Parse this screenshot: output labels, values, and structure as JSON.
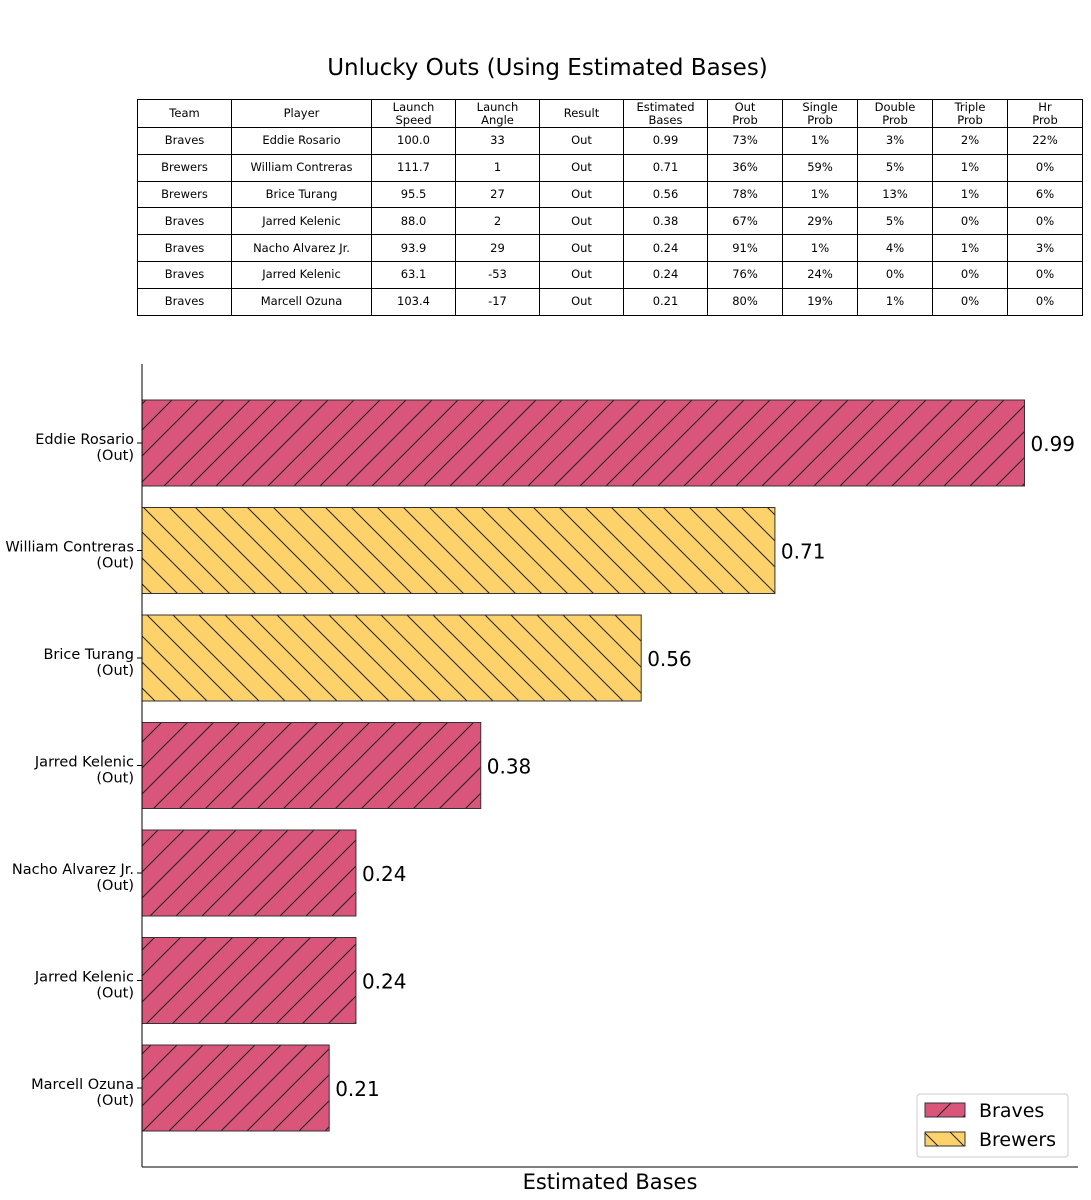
{
  "title": "Unlucky Outs (Using Estimated Bases)",
  "table": {
    "columns": [
      [
        "Team"
      ],
      [
        "Player"
      ],
      [
        "Launch",
        "Speed"
      ],
      [
        "Launch",
        "Angle"
      ],
      [
        "Result"
      ],
      [
        "Estimated",
        "Bases"
      ],
      [
        "Out",
        "Prob"
      ],
      [
        "Single",
        "Prob"
      ],
      [
        "Double",
        "Prob"
      ],
      [
        "Triple",
        "Prob"
      ],
      [
        "Hr",
        "Prob"
      ]
    ],
    "rows": [
      [
        "Braves",
        "Eddie Rosario",
        "100.0",
        "33",
        "Out",
        "0.99",
        "73%",
        "1%",
        "3%",
        "2%",
        "22%"
      ],
      [
        "Brewers",
        "William Contreras",
        "111.7",
        "1",
        "Out",
        "0.71",
        "36%",
        "59%",
        "5%",
        "1%",
        "0%"
      ],
      [
        "Brewers",
        "Brice Turang",
        "95.5",
        "27",
        "Out",
        "0.56",
        "78%",
        "1%",
        "13%",
        "1%",
        "6%"
      ],
      [
        "Braves",
        "Jarred Kelenic",
        "88.0",
        "2",
        "Out",
        "0.38",
        "67%",
        "29%",
        "5%",
        "0%",
        "0%"
      ],
      [
        "Braves",
        "Nacho Alvarez Jr.",
        "93.9",
        "29",
        "Out",
        "0.24",
        "91%",
        "1%",
        "4%",
        "1%",
        "3%"
      ],
      [
        "Braves",
        "Jarred Kelenic",
        "63.1",
        "-53",
        "Out",
        "0.24",
        "76%",
        "24%",
        "0%",
        "0%",
        "0%"
      ],
      [
        "Braves",
        "Marcell Ozuna",
        "103.4",
        "-17",
        "Out",
        "0.21",
        "80%",
        "19%",
        "1%",
        "0%",
        "0%"
      ]
    ]
  },
  "chart_data": {
    "type": "bar",
    "orientation": "horizontal",
    "xlabel": "Estimated Bases",
    "xlim": [
      0,
      1.05
    ],
    "grid": false,
    "legend_position": "bottom-right",
    "colors": {
      "Braves": "#d9557a",
      "Brewers": "#fdd26b"
    },
    "categories": [
      [
        "Eddie Rosario",
        "(Out)"
      ],
      [
        "William Contreras",
        "(Out)"
      ],
      [
        "Brice Turang",
        "(Out)"
      ],
      [
        "Jarred Kelenic",
        "(Out)"
      ],
      [
        "Nacho Alvarez Jr.",
        "(Out)"
      ],
      [
        "Jarred Kelenic",
        "(Out)"
      ],
      [
        "Marcell Ozuna",
        "(Out)"
      ]
    ],
    "teams": [
      "Braves",
      "Brewers",
      "Brewers",
      "Braves",
      "Braves",
      "Braves",
      "Braves"
    ],
    "values": [
      0.99,
      0.71,
      0.56,
      0.38,
      0.24,
      0.24,
      0.21
    ],
    "data_labels": [
      "0.99",
      "0.71",
      "0.56",
      "0.38",
      "0.24",
      "0.24",
      "0.21"
    ],
    "legend": [
      "Braves",
      "Brewers"
    ]
  }
}
